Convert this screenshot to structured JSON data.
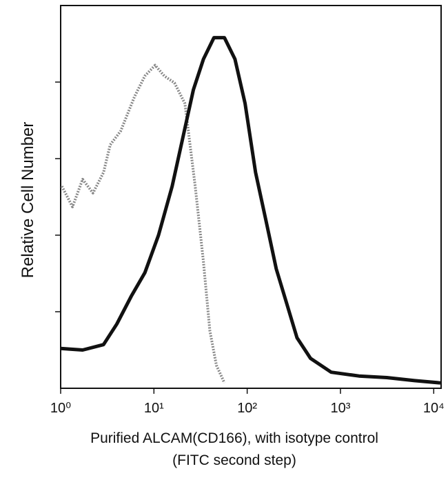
{
  "chart_data": {
    "type": "line",
    "ylabel": "Relative Cell Number",
    "xlabel": [
      "Purified ALCAM(CD166), with isotype control",
      "(FITC second step)"
    ],
    "xscale": "log",
    "xlim": [
      1,
      12000
    ],
    "xticks": [
      {
        "value": 1,
        "label": "10⁰"
      },
      {
        "value": 10,
        "label": "10¹"
      },
      {
        "value": 100,
        "label": "10²"
      },
      {
        "value": 1000,
        "label": "10³"
      },
      {
        "value": 10000,
        "label": "10⁴"
      }
    ],
    "ylim": [
      0,
      5
    ],
    "yticks": [
      1,
      2,
      3,
      4
    ],
    "series": [
      {
        "color": "#888888",
        "style": "dotted",
        "x": [
          1.03,
          1.34,
          1.72,
          2.22,
          2.88,
          3.4,
          4.4,
          6.2,
          8.0,
          10.3,
          12.9,
          16.6,
          21.5,
          27.7,
          34,
          39.8,
          46.8,
          57
        ],
        "values": [
          2.64,
          2.37,
          2.73,
          2.55,
          2.82,
          3.18,
          3.36,
          3.81,
          4.08,
          4.22,
          4.08,
          3.99,
          3.72,
          2.64,
          1.65,
          0.75,
          0.3,
          0.07
        ]
      },
      {
        "color": "#111111",
        "style": "solid",
        "x": [
          1,
          1.72,
          2.88,
          4.0,
          5.7,
          8.0,
          11.2,
          15.7,
          20.4,
          26.5,
          34,
          44,
          57,
          74,
          95,
          123,
          159,
          205,
          265,
          342,
          478,
          795,
          1580,
          3140,
          6230,
          11800
        ],
        "values": [
          0.52,
          0.5,
          0.57,
          0.84,
          1.2,
          1.51,
          2.0,
          2.64,
          3.27,
          3.9,
          4.3,
          4.58,
          4.58,
          4.3,
          3.72,
          2.82,
          2.19,
          1.56,
          1.11,
          0.66,
          0.39,
          0.21,
          0.16,
          0.14,
          0.1,
          0.07
        ]
      }
    ]
  }
}
